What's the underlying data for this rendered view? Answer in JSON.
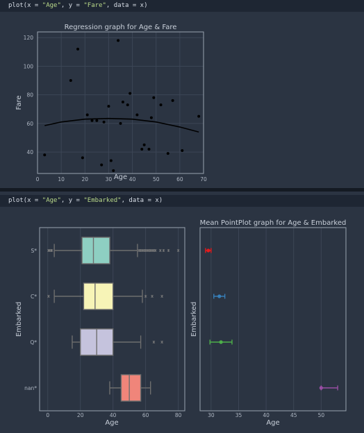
{
  "cell1": {
    "code_prefix": "plot(x = ",
    "code_x": "\"Age\"",
    "code_mid": ", y = ",
    "code_y": "\"Fare\"",
    "code_suffix": ", data = x)"
  },
  "cell2": {
    "code_prefix": "plot(x = ",
    "code_x": "\"Age\"",
    "code_mid": ", y = ",
    "code_y": "\"Embarked\"",
    "code_suffix": ", data = x)"
  },
  "chart_data": [
    {
      "type": "scatter",
      "title": "Regression graph for Age & Fare",
      "xlabel": "Age",
      "ylabel": "Fare",
      "xlim": [
        0,
        70
      ],
      "ylim": [
        25,
        124
      ],
      "xticks": [
        0,
        10,
        20,
        30,
        40,
        50,
        60,
        70
      ],
      "yticks": [
        40,
        60,
        80,
        100,
        120
      ],
      "grid": true,
      "points": [
        [
          3,
          38
        ],
        [
          14,
          90
        ],
        [
          17,
          112
        ],
        [
          19,
          36
        ],
        [
          21,
          66
        ],
        [
          23,
          62
        ],
        [
          25,
          62
        ],
        [
          27,
          31
        ],
        [
          28,
          61
        ],
        [
          30,
          72
        ],
        [
          31,
          34
        ],
        [
          32,
          27
        ],
        [
          34,
          118
        ],
        [
          35,
          60
        ],
        [
          36,
          75
        ],
        [
          38,
          73
        ],
        [
          39,
          81
        ],
        [
          42,
          66
        ],
        [
          44,
          42
        ],
        [
          45,
          45
        ],
        [
          47,
          42
        ],
        [
          48,
          64
        ],
        [
          49,
          78
        ],
        [
          52,
          73
        ],
        [
          55,
          39
        ],
        [
          57,
          76
        ],
        [
          61,
          41
        ],
        [
          68,
          65
        ]
      ],
      "regression_line": [
        [
          3,
          58.5
        ],
        [
          10,
          61
        ],
        [
          20,
          63
        ],
        [
          30,
          63.5
        ],
        [
          40,
          63
        ],
        [
          50,
          61
        ],
        [
          60,
          57.5
        ],
        [
          68,
          54
        ]
      ],
      "marker_color": "#000000",
      "line_color": "#000000"
    },
    {
      "type": "box",
      "xlabel": "Age",
      "ylabel": "Embarked",
      "xlim": [
        -5,
        84
      ],
      "xticks": [
        0,
        20,
        40,
        60,
        80
      ],
      "grid": true,
      "categories": [
        "S*",
        "C*",
        "Q*",
        "nan*"
      ],
      "boxes": [
        {
          "category": "S*",
          "whisker_low": 4,
          "q1": 21,
          "median": 28,
          "q3": 38,
          "whisker_high": 55,
          "outliers": [
            0.5,
            1,
            2,
            2.5,
            56,
            57,
            58,
            59,
            60,
            61,
            62,
            63,
            64,
            65,
            66,
            69,
            71,
            74,
            80
          ],
          "color": "#8ecfc2"
        },
        {
          "category": "C*",
          "whisker_low": 4,
          "q1": 22,
          "median": 29,
          "q3": 40,
          "whisker_high": 58,
          "outliers": [
            0.5,
            60,
            64,
            70
          ],
          "color": "#f7f4b7"
        },
        {
          "category": "Q*",
          "whisker_low": 15,
          "q1": 20,
          "median": 30,
          "q3": 40,
          "whisker_high": 57,
          "outliers": [
            65,
            70
          ],
          "color": "#c5c3dd"
        },
        {
          "category": "nan*",
          "whisker_low": 38,
          "q1": 45,
          "median": 50,
          "q3": 57,
          "whisker_high": 63,
          "outliers": [],
          "color": "#f0857a"
        }
      ]
    },
    {
      "type": "point",
      "title": "Mean PointPlot graph for Age & Embarked",
      "xlabel": "Age",
      "ylabel": "Embarked",
      "xlim": [
        28,
        54.5
      ],
      "xticks": [
        30,
        35,
        40,
        45,
        50
      ],
      "grid": true,
      "categories": [
        "S*",
        "C*",
        "Q*",
        "nan*"
      ],
      "points": [
        {
          "category": "S*",
          "mean": 29.5,
          "ci": [
            29,
            30
          ],
          "color": "#e41a1c"
        },
        {
          "category": "C*",
          "mean": 31.5,
          "ci": [
            30.5,
            32.5
          ],
          "color": "#377eb8"
        },
        {
          "category": "Q*",
          "mean": 31.8,
          "ci": [
            29.8,
            33.8
          ],
          "color": "#4daf4a"
        },
        {
          "category": "nan*",
          "mean": 50,
          "ci": [
            50,
            53
          ],
          "color": "#984ea3"
        }
      ]
    }
  ]
}
